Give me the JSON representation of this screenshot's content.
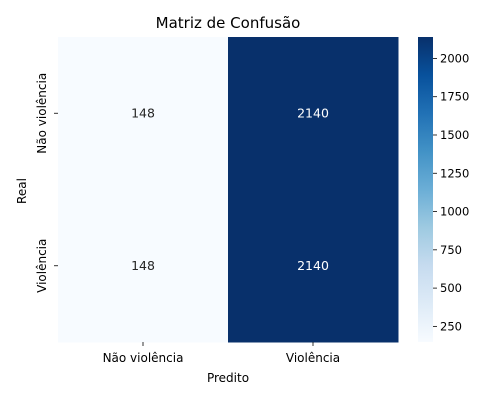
{
  "chart_data": {
    "type": "heatmap",
    "title": "Matriz de Confusão",
    "xlabel": "Predito",
    "ylabel": "Real",
    "x_categories": [
      "Não violência",
      "Violência"
    ],
    "y_categories": [
      "Não violência",
      "Violência"
    ],
    "values": [
      [
        148,
        2140
      ],
      [
        148,
        2140
      ]
    ],
    "colormap": "Blues",
    "color_min": "#f7fbff",
    "color_max": "#08306b",
    "colorbar": {
      "range": [
        148,
        2140
      ],
      "ticks": [
        250,
        500,
        750,
        1000,
        1250,
        1500,
        1750,
        2000
      ],
      "tick_labels": [
        "250",
        "500",
        "750",
        "1000",
        "1250",
        "1500",
        "1750",
        "2000"
      ]
    },
    "grid": false
  }
}
